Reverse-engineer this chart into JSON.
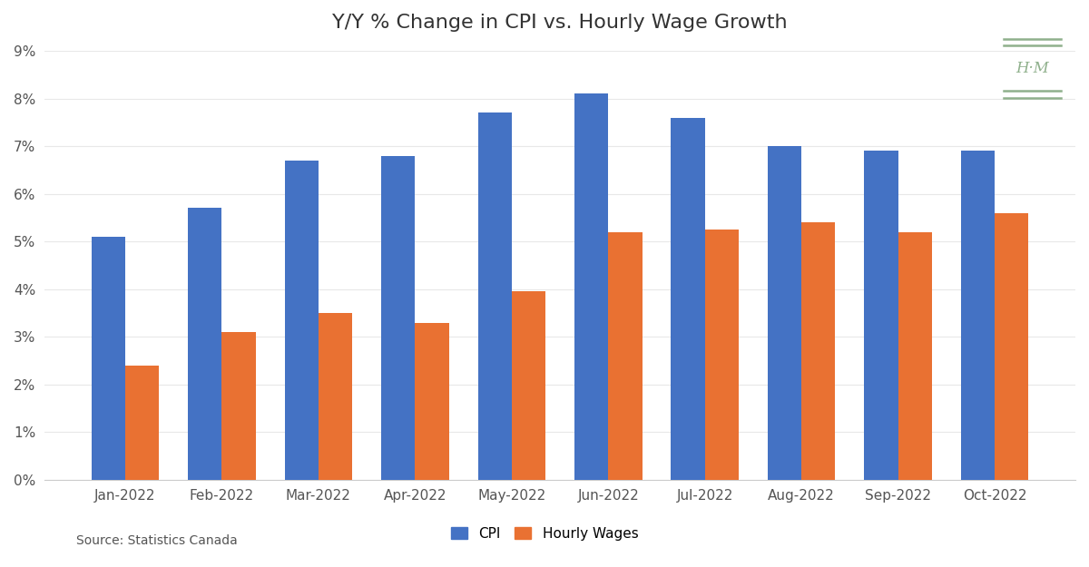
{
  "title": "Y/Y % Change in CPI vs. Hourly Wage Growth",
  "categories": [
    "Jan-2022",
    "Feb-2022",
    "Mar-2022",
    "Apr-2022",
    "May-2022",
    "Jun-2022",
    "Jul-2022",
    "Aug-2022",
    "Sep-2022",
    "Oct-2022"
  ],
  "cpi_values": [
    5.1,
    5.7,
    6.7,
    6.8,
    7.7,
    8.1,
    7.6,
    7.0,
    6.9,
    6.9
  ],
  "wage_values": [
    2.4,
    3.1,
    3.5,
    3.3,
    3.95,
    5.2,
    5.25,
    5.4,
    5.2,
    5.6
  ],
  "cpi_color": "#4472C4",
  "wage_color": "#E97132",
  "background_color": "#FFFFFF",
  "ylim": [
    0,
    9
  ],
  "yticks": [
    0,
    1,
    2,
    3,
    4,
    5,
    6,
    7,
    8,
    9
  ],
  "ytick_labels": [
    "0%",
    "1%",
    "2%",
    "3%",
    "4%",
    "5%",
    "6%",
    "7%",
    "8%",
    "9%"
  ],
  "source_text": "Source: Statistics Canada",
  "legend_cpi": "CPI",
  "legend_wage": "Hourly Wages",
  "bar_width": 0.35,
  "logo_color": "#8FB08C",
  "title_fontsize": 16,
  "tick_fontsize": 11,
  "source_fontsize": 10,
  "grid_color": "#E8E8E8",
  "spine_color": "#CCCCCC",
  "label_color": "#555555"
}
